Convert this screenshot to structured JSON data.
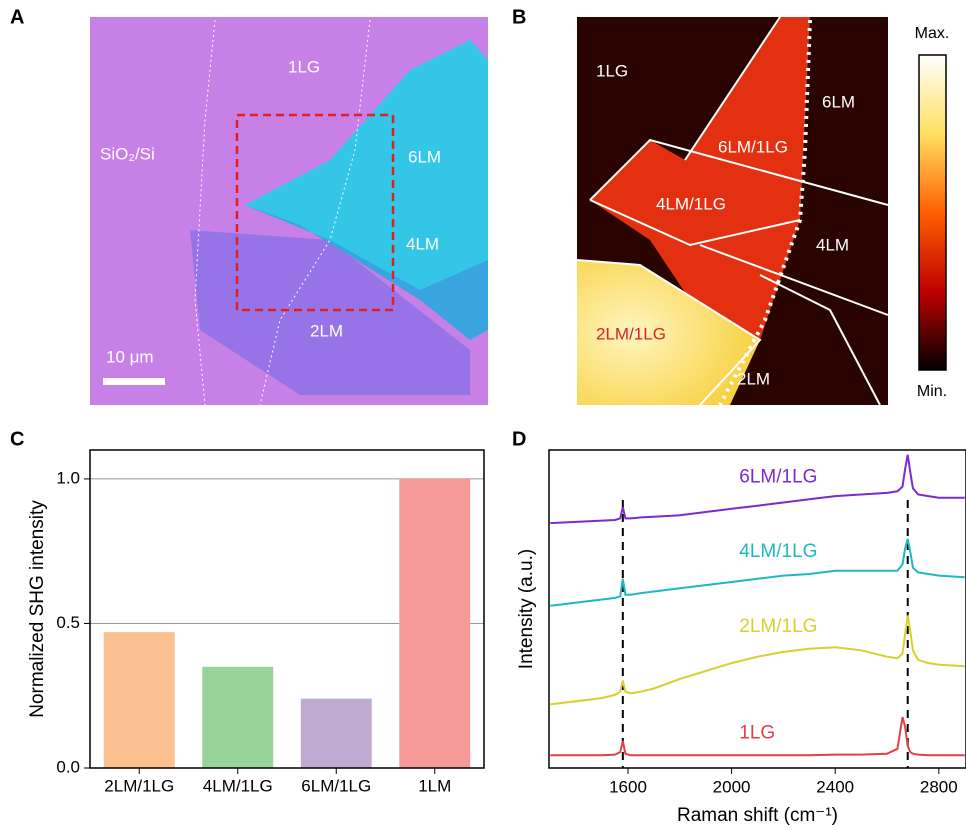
{
  "panels": {
    "a": {
      "letter": "A",
      "labels": [
        "1LG",
        "SiO₂/Si",
        "6LM",
        "4LM",
        "2LM"
      ],
      "scale_bar": "10 μm"
    },
    "b": {
      "letter": "B",
      "labels": [
        "1LG",
        "6LM",
        "6LM/1LG",
        "4LM/1LG",
        "4LM",
        "2LM"
      ],
      "red_label": "2LM/1LG",
      "colorbar_max": "Max.",
      "colorbar_min": "Min."
    }
  },
  "chart_data": [
    {
      "type": "bar",
      "letter": "C",
      "ylabel": "Normalized SHG intensity",
      "categories": [
        "2LM/1LG",
        "4LM/1LG",
        "6LM/1LG",
        "1LM"
      ],
      "values": [
        0.47,
        0.35,
        0.24,
        1.0
      ],
      "colors": [
        "#fbc08f",
        "#98d49a",
        "#bfaad2",
        "#f49a98"
      ],
      "ylim": [
        0,
        1.1
      ],
      "yticks": [
        {
          "value": 0,
          "label": "0.0"
        },
        {
          "value": 0.5,
          "label": "0.5"
        },
        {
          "value": 1,
          "label": "1.0"
        }
      ],
      "grid": true
    },
    {
      "type": "line",
      "letter": "D",
      "ylabel": "Intensity (a.u.)",
      "xlabel": "Raman shift (cm⁻¹)",
      "x": [
        1300,
        1350,
        1400,
        1450,
        1500,
        1550,
        1570,
        1580,
        1590,
        1610,
        1650,
        1700,
        1800,
        1900,
        2000,
        2100,
        2200,
        2300,
        2400,
        2500,
        2600,
        2640,
        2660,
        2670,
        2680,
        2690,
        2700,
        2720,
        2760,
        2800,
        2900
      ],
      "series": [
        {
          "name": "1LG",
          "color": "#e0404a",
          "values": [
            0.4,
            0.4,
            0.4,
            0.4,
            0.4,
            0.42,
            0.5,
            0.85,
            0.45,
            0.4,
            0.4,
            0.4,
            0.4,
            0.4,
            0.4,
            0.4,
            0.4,
            0.4,
            0.42,
            0.42,
            0.45,
            0.6,
            1.6,
            1.3,
            0.7,
            0.5,
            0.45,
            0.42,
            0.4,
            0.4,
            0.4
          ]
        },
        {
          "name": "2LM/1LG",
          "color": "#d8d030",
          "values": [
            2.0,
            2.05,
            2.1,
            2.15,
            2.2,
            2.3,
            2.4,
            2.75,
            2.4,
            2.35,
            2.4,
            2.5,
            2.8,
            3.05,
            3.3,
            3.5,
            3.65,
            3.75,
            3.8,
            3.7,
            3.5,
            3.45,
            3.6,
            4.2,
            4.8,
            4.3,
            3.7,
            3.4,
            3.3,
            3.25,
            3.2
          ]
        },
        {
          "name": "4LM/1LG",
          "color": "#20b8c0",
          "values": [
            5.1,
            5.15,
            5.2,
            5.25,
            5.3,
            5.35,
            5.4,
            5.95,
            5.45,
            5.45,
            5.5,
            5.55,
            5.65,
            5.75,
            5.85,
            5.95,
            6.05,
            6.1,
            6.2,
            6.2,
            6.2,
            6.2,
            6.4,
            6.9,
            7.2,
            6.8,
            6.3,
            6.15,
            6.1,
            6.05,
            6.0
          ]
        },
        {
          "name": "6LM/1LG",
          "color": "#7a2ad0",
          "values": [
            7.7,
            7.72,
            7.74,
            7.76,
            7.78,
            7.8,
            7.85,
            8.2,
            7.85,
            7.85,
            7.88,
            7.9,
            7.95,
            8.05,
            8.15,
            8.25,
            8.35,
            8.45,
            8.55,
            8.6,
            8.65,
            8.7,
            8.85,
            9.4,
            9.85,
            9.3,
            8.8,
            8.6,
            8.55,
            8.5,
            8.5
          ]
        }
      ],
      "vlines": [
        1580,
        2680
      ],
      "xlim": [
        1295,
        2905
      ],
      "xticks": [
        1600,
        2000,
        2400,
        2800
      ],
      "ylim": [
        0,
        10
      ]
    }
  ]
}
